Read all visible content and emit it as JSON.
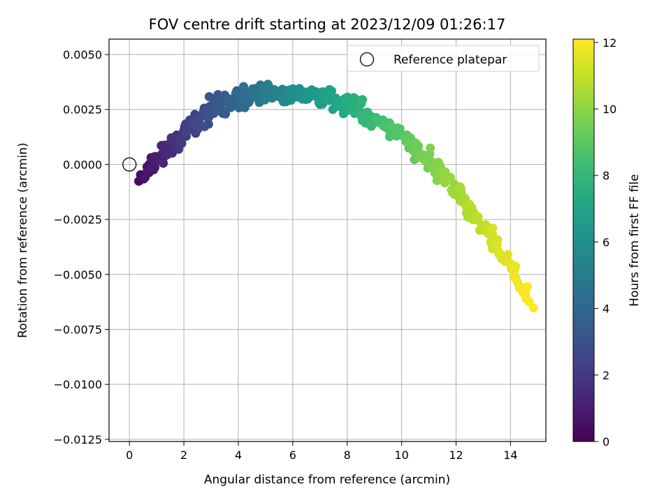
{
  "chart_data": {
    "type": "scatter",
    "title": "FOV centre drift starting at 2023/12/09 01:26:17",
    "xlabel": "Angular distance from reference (arcmin)",
    "ylabel": "Rotation from reference (arcmin)",
    "xlim": [
      -0.75,
      15.3
    ],
    "ylim": [
      -0.0126,
      0.0057
    ],
    "x_ticks": [
      0,
      2,
      4,
      6,
      8,
      10,
      12,
      14
    ],
    "x_tick_labels": [
      "0",
      "2",
      "4",
      "6",
      "8",
      "10",
      "12",
      "14"
    ],
    "y_ticks": [
      0.005,
      0.0025,
      0,
      -0.0025,
      -0.005,
      -0.0075,
      -0.01,
      -0.0125
    ],
    "y_tick_labels": [
      "0.0050",
      "0.0025",
      "0.0000",
      "−0.0025",
      "−0.0050",
      "−0.0075",
      "−0.0100",
      "−0.0125"
    ],
    "grid": true,
    "colormap": "viridis",
    "colorbar": {
      "label": "Hours from first FF file",
      "range": [
        0,
        12.1
      ],
      "ticks": [
        0,
        2,
        4,
        6,
        8,
        10,
        12
      ],
      "tick_labels": [
        "0",
        "2",
        "4",
        "6",
        "8",
        "10",
        "12"
      ]
    },
    "legend": {
      "position": "top-right",
      "entries": [
        "Reference platepar"
      ]
    },
    "reference_point": {
      "x": 0,
      "y": 0
    },
    "point_trend": {
      "count": 460,
      "x_range": [
        0.45,
        14.7
      ],
      "hours_range": [
        0.3,
        12.1
      ],
      "peak": {
        "x": 5.5,
        "y": 0.0033
      }
    }
  }
}
